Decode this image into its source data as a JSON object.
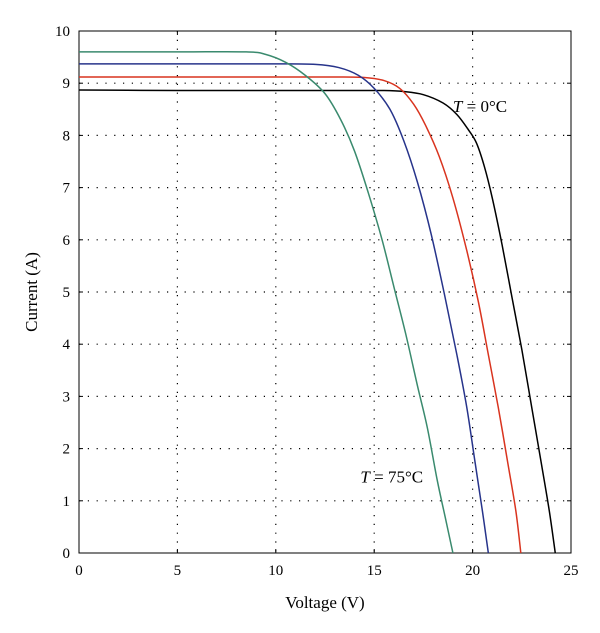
{
  "chart_data": {
    "type": "line",
    "title": "",
    "xlabel": "Voltage (V)",
    "ylabel": "Current (A)",
    "xlim": [
      0,
      25
    ],
    "ylim": [
      0,
      10
    ],
    "xticks": [
      "0",
      "5",
      "10",
      "15",
      "20",
      "25"
    ],
    "yticks": [
      "0",
      "1",
      "2",
      "3",
      "4",
      "5",
      "6",
      "7",
      "8",
      "9",
      "10"
    ],
    "grid": true,
    "grid_style": "dotted",
    "colors": {
      "t0": "#000000",
      "t25": "#d9341f",
      "t50": "#27348b",
      "t75": "#3a8a6e"
    },
    "series": [
      {
        "color": "#000000",
        "x": [
          0,
          5,
          10,
          14,
          15.5,
          16.5,
          17.5,
          18.5,
          19.2,
          19.8,
          20.2,
          20.6,
          21.0,
          21.5,
          22.0,
          22.5,
          23.0,
          23.5,
          23.9,
          24.2
        ],
        "y": [
          8.87,
          8.86,
          8.86,
          8.86,
          8.86,
          8.84,
          8.78,
          8.62,
          8.4,
          8.1,
          7.85,
          7.4,
          6.8,
          5.9,
          4.9,
          3.9,
          2.8,
          1.7,
          0.8,
          0
        ]
      },
      {
        "color": "#d9341f",
        "x": [
          0,
          5,
          10,
          13,
          14.5,
          15.5,
          16.3,
          17.0,
          17.6,
          18.3,
          19.0,
          19.7,
          20.3,
          20.8,
          21.3,
          21.8,
          22.2,
          22.45
        ],
        "y": [
          9.12,
          9.12,
          9.12,
          9.12,
          9.11,
          9.05,
          8.9,
          8.6,
          8.2,
          7.6,
          6.8,
          5.8,
          4.8,
          3.8,
          2.8,
          1.7,
          0.8,
          0
        ]
      },
      {
        "color": "#27348b",
        "x": [
          0,
          5,
          10,
          12,
          13.2,
          14.2,
          15.0,
          15.8,
          16.5,
          17.2,
          17.9,
          18.6,
          19.2,
          19.7,
          20.1,
          20.5,
          20.8
        ],
        "y": [
          9.37,
          9.37,
          9.37,
          9.36,
          9.3,
          9.15,
          8.9,
          8.5,
          7.9,
          7.1,
          6.1,
          4.9,
          3.8,
          2.8,
          1.8,
          0.8,
          0
        ]
      },
      {
        "color": "#3a8a6e",
        "x": [
          0,
          5,
          8.5,
          9.5,
          10.5,
          11.5,
          12.5,
          13.3,
          14.0,
          14.7,
          15.4,
          16.0,
          16.6,
          17.2,
          17.7,
          18.2,
          18.6,
          19.0
        ],
        "y": [
          9.6,
          9.6,
          9.6,
          9.55,
          9.4,
          9.15,
          8.8,
          8.3,
          7.7,
          6.9,
          6.0,
          5.1,
          4.2,
          3.2,
          2.4,
          1.4,
          0.7,
          0
        ]
      }
    ],
    "annotations": [
      {
        "var": "T",
        "text": " = 0°C",
        "x": 19.0,
        "y": 8.45
      },
      {
        "var": "T",
        "text": " = 75°C",
        "x": 14.3,
        "y": 1.35
      }
    ]
  }
}
